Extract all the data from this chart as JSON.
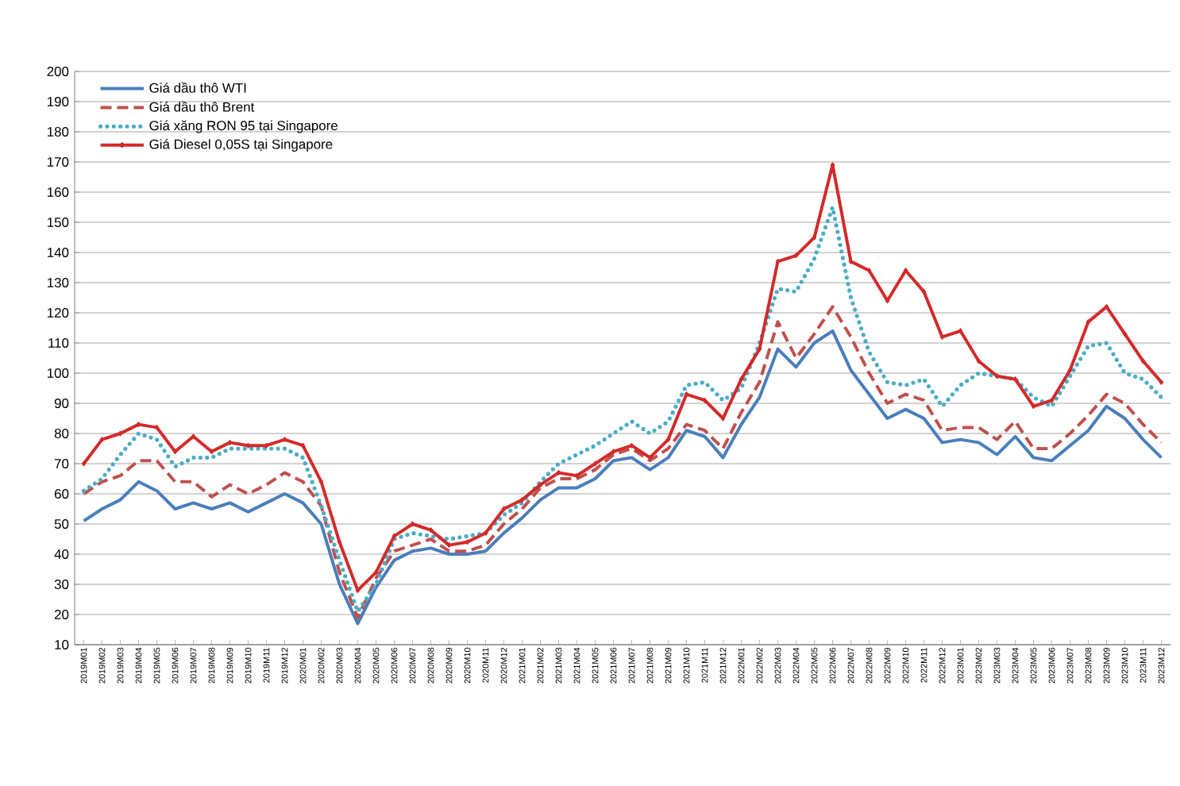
{
  "chart_data": {
    "type": "line",
    "categories": [
      "2019M01",
      "2019M02",
      "2019M03",
      "2019M04",
      "2019M05",
      "2019M06",
      "2019M07",
      "2019M08",
      "2019M09",
      "2019M10",
      "2019M11",
      "2019M12",
      "2020M01",
      "2020M02",
      "2020M03",
      "2020M04",
      "2020M05",
      "2020M06",
      "2020M07",
      "2020M08",
      "2020M09",
      "2020M10",
      "2020M11",
      "2020M12",
      "2021M01",
      "2021M02",
      "2021M03",
      "2021M04",
      "2021M05",
      "2021M06",
      "2021M07",
      "2021M08",
      "2021M09",
      "2021M10",
      "2021M11",
      "2021M12",
      "2022M01",
      "2022M02",
      "2022M03",
      "2022M04",
      "2022M05",
      "2022M06",
      "2022M07",
      "2022M08",
      "2022M09",
      "2022M10",
      "2022M11",
      "2022M12",
      "2023M01",
      "2023M02",
      "2023M03",
      "2023M04",
      "2023M05",
      "2023M06",
      "2023M07",
      "2023M08",
      "2023M09",
      "2023M10",
      "2023M11",
      "2023M12"
    ],
    "series": [
      {
        "name": "Giá dầu thô WTI",
        "color": "#4a7ebb",
        "line_style": "solid",
        "values": [
          51,
          55,
          58,
          64,
          61,
          55,
          57,
          55,
          57,
          54,
          57,
          60,
          57,
          50,
          30,
          17,
          29,
          38,
          41,
          42,
          40,
          40,
          41,
          47,
          52,
          58,
          62,
          62,
          65,
          71,
          72,
          68,
          72,
          81,
          79,
          72,
          83,
          92,
          108,
          102,
          110,
          114,
          101,
          93,
          85,
          88,
          85,
          77,
          78,
          77,
          73,
          79,
          72,
          71,
          76,
          81,
          89,
          85,
          78,
          72
        ]
      },
      {
        "name": "Giá dầu thô Brent",
        "color": "#c0504d",
        "line_style": "dashed",
        "values": [
          60,
          64,
          66,
          71,
          71,
          64,
          64,
          59,
          63,
          60,
          63,
          67,
          64,
          56,
          34,
          19,
          32,
          41,
          43,
          45,
          41,
          41,
          43,
          50,
          55,
          62,
          65,
          65,
          68,
          73,
          75,
          71,
          75,
          83,
          81,
          75,
          87,
          97,
          117,
          105,
          113,
          122,
          112,
          100,
          90,
          93,
          91,
          81,
          82,
          82,
          78,
          84,
          75,
          75,
          80,
          86,
          93,
          90,
          83,
          77
        ]
      },
      {
        "name": "Giá xăng RON 95 tại Singapore",
        "color": "#4bacc6",
        "line_style": "dotted",
        "values": [
          61,
          65,
          73,
          80,
          78,
          69,
          72,
          72,
          75,
          75,
          75,
          75,
          72,
          56,
          38,
          21,
          30,
          45,
          47,
          46,
          45,
          46,
          47,
          53,
          57,
          64,
          70,
          73,
          76,
          80,
          84,
          80,
          84,
          96,
          97,
          91,
          95,
          110,
          128,
          127,
          138,
          155,
          125,
          107,
          97,
          96,
          98,
          89,
          96,
          100,
          99,
          98,
          92,
          89,
          99,
          109,
          110,
          100,
          98,
          92
        ]
      },
      {
        "name": "Giá Diesel 0,05S tại Singapore",
        "color": "#d42a2a",
        "line_style": "solid",
        "marker": "diamond",
        "values": [
          70,
          78,
          80,
          83,
          82,
          74,
          79,
          74,
          77,
          76,
          76,
          78,
          76,
          64,
          44,
          28,
          34,
          46,
          50,
          48,
          43,
          44,
          47,
          55,
          58,
          63,
          67,
          66,
          70,
          74,
          76,
          72,
          78,
          93,
          91,
          85,
          98,
          108,
          137,
          139,
          145,
          169,
          137,
          134,
          124,
          134,
          127,
          112,
          114,
          104,
          99,
          98,
          89,
          91,
          101,
          117,
          122,
          113,
          104,
          97
        ]
      }
    ],
    "ylim": [
      10,
      200
    ],
    "yticks": [
      10,
      20,
      30,
      40,
      50,
      60,
      70,
      80,
      90,
      100,
      110,
      120,
      130,
      140,
      150,
      160,
      170,
      180,
      190,
      200
    ],
    "grid": "y",
    "legend": "top left"
  }
}
